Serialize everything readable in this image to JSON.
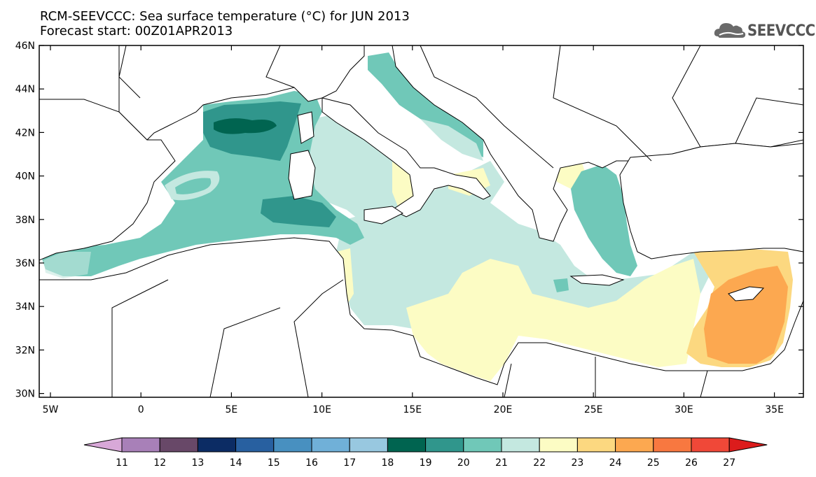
{
  "title": "RCM-SEEVCCC: Sea surface temperature (°C) for JUN 2013",
  "subtitle": "Forecast start: 00Z01APR2013",
  "logo": {
    "text": "SEEVCCC",
    "icon": "cloud-icon"
  },
  "map": {
    "lat_ticks": [
      "46N",
      "44N",
      "42N",
      "40N",
      "38N",
      "36N",
      "34N",
      "32N",
      "30N"
    ],
    "lon_ticks": [
      "5W",
      "0",
      "5E",
      "10E",
      "15E",
      "20E",
      "25E",
      "30E",
      "35E"
    ],
    "lon_range": [
      -5.5,
      36.5
    ],
    "lat_range": [
      29.8,
      46
    ]
  },
  "colorbar": {
    "labels": [
      "11",
      "12",
      "13",
      "14",
      "15",
      "16",
      "17",
      "18",
      "19",
      "20",
      "21",
      "22",
      "23",
      "24",
      "25",
      "26",
      "27"
    ],
    "colors": [
      "#d8a8d8",
      "#a880b8",
      "#684868",
      "#0c2c64",
      "#2860a0",
      "#4890c0",
      "#70b0d8",
      "#98c8e0",
      "#006450",
      "#30968c",
      "#70c8b8",
      "#c4e8e0",
      "#fcfcc4",
      "#fcd880",
      "#fca850",
      "#f87840",
      "#f04838",
      "#dc1c1c"
    ]
  }
}
